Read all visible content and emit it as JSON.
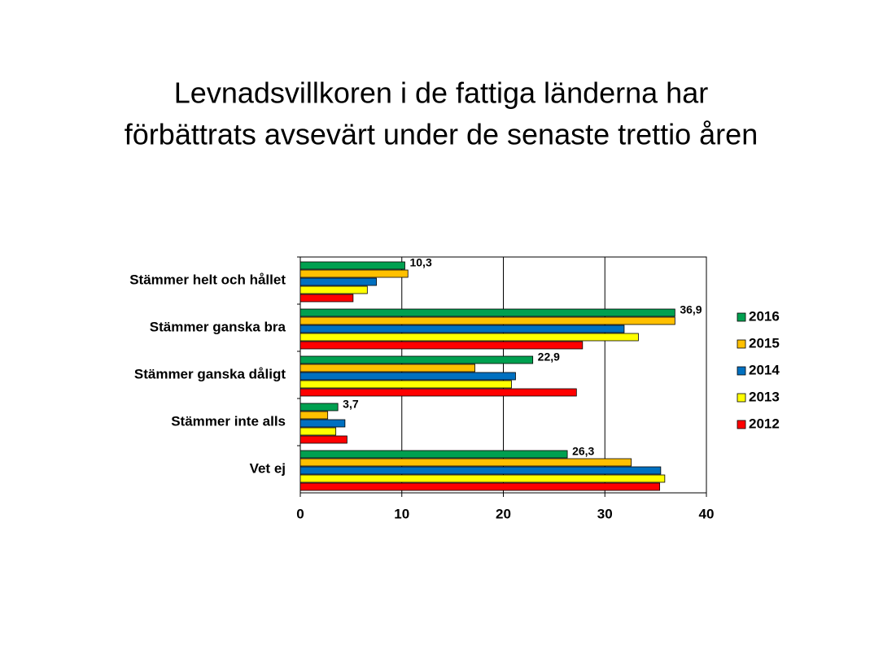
{
  "chart_data": {
    "type": "hbar",
    "title": [
      "Levnadsvillkoren i de fattiga länderna har",
      "förbättrats avsevärt under de senaste trettio åren"
    ],
    "categories": [
      "Stämmer helt och hållet",
      "Stämmer ganska bra",
      "Stämmer ganska dåligt",
      "Stämmer inte alls",
      "Vet ej"
    ],
    "series": [
      {
        "name": "2016",
        "color": "#00a050",
        "values": [
          10.3,
          36.9,
          22.9,
          3.7,
          26.3
        ],
        "value_labels": [
          "10,3",
          "36,9",
          "22,9",
          "3,7",
          "26,3"
        ]
      },
      {
        "name": "2015",
        "color": "#ffc000",
        "values": [
          10.6,
          36.9,
          17.2,
          2.7,
          32.6
        ]
      },
      {
        "name": "2014",
        "color": "#0070c0",
        "values": [
          7.5,
          31.9,
          21.2,
          4.4,
          35.5
        ]
      },
      {
        "name": "2013",
        "color": "#ffff00",
        "values": [
          6.6,
          33.3,
          20.8,
          3.5,
          35.9
        ]
      },
      {
        "name": "2012",
        "color": "#ff0000",
        "values": [
          5.2,
          27.8,
          27.2,
          4.6,
          35.4
        ]
      }
    ],
    "xlim": [
      0,
      40
    ],
    "xticks": [
      0,
      10,
      20,
      30,
      40
    ],
    "grid": true,
    "legend": "right"
  }
}
